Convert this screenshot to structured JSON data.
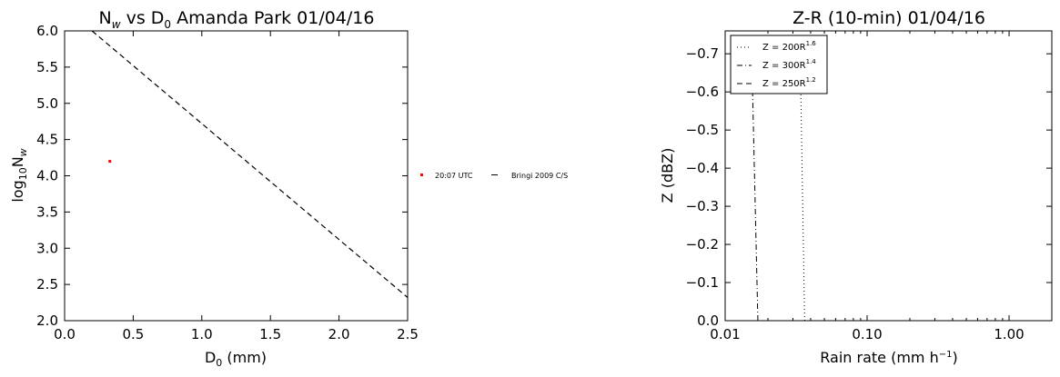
{
  "chart_data": [
    {
      "type": "scatter",
      "title": "N_w vs D_0 Amanda Park 01/04/16",
      "title_parts": [
        "N",
        "w",
        " vs D",
        "0",
        " Amanda Park 01/04/16"
      ],
      "xlabel_parts": [
        "D",
        "0",
        " (mm)"
      ],
      "ylabel_parts": [
        "log",
        "10",
        "N",
        "w"
      ],
      "xlim": [
        0.0,
        2.5
      ],
      "ylim": [
        2.0,
        6.0
      ],
      "xticks": [
        "0.0",
        "0.5",
        "1.0",
        "1.5",
        "2.0",
        "2.5"
      ],
      "yticks": [
        "2.0",
        "2.5",
        "3.0",
        "3.5",
        "4.0",
        "4.5",
        "5.0",
        "5.5",
        "6.0"
      ],
      "grid": false,
      "legend_position": "outside-right",
      "series": [
        {
          "name": "20:07 UTC",
          "kind": "scatter",
          "color": "#ff0000",
          "x": [
            0.33
          ],
          "y": [
            4.2
          ]
        },
        {
          "name": "Bringi 2009 C/S",
          "kind": "line",
          "color": "#000000",
          "style": "dashed",
          "x": [
            0.2,
            2.5
          ],
          "y": [
            6.0,
            2.32
          ]
        }
      ]
    },
    {
      "type": "line",
      "title": "Z-R (10-min) 01/04/16",
      "xlabel_parts": [
        "Rain rate (mm h",
        "−1",
        ")"
      ],
      "ylabel": "Z (dBZ)",
      "xscale": "log",
      "xlim": [
        0.01,
        2.0
      ],
      "ylim": [
        0.0,
        -0.76
      ],
      "xticks": [
        "0.01",
        "0.10",
        "1.00"
      ],
      "yticks": [
        "0.0",
        "−0.1",
        "−0.2",
        "−0.3",
        "−0.4",
        "−0.5",
        "−0.6",
        "−0.7"
      ],
      "grid": false,
      "legend_position": "top-left",
      "series": [
        {
          "name_parts": [
            "Z = 200R",
            "1.6"
          ],
          "style": "dotted",
          "color": "#000000",
          "x": [
            0.0363,
            0.0341
          ],
          "y": [
            0.0,
            -0.6
          ]
        },
        {
          "name_parts": [
            "Z = 300R",
            "1.4"
          ],
          "style": "dashdot",
          "color": "#000000",
          "x": [
            0.017,
            0.0156
          ],
          "y": [
            0.0,
            -0.6
          ]
        },
        {
          "name_parts": [
            "Z = 250R",
            "1.2"
          ],
          "style": "dashed",
          "color": "#000000",
          "x": [],
          "y": []
        }
      ]
    }
  ]
}
